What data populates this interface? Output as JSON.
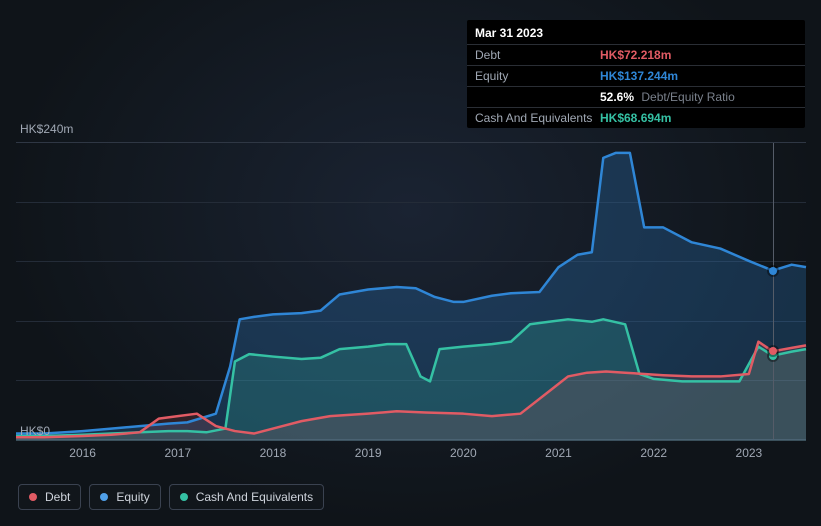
{
  "tooltip": {
    "date": "Mar 31 2023",
    "rows": [
      {
        "label": "Debt",
        "value": "HK$72.218m",
        "color": "#e15b64"
      },
      {
        "label": "Equity",
        "value": "HK$137.244m",
        "color": "#2f86d6"
      },
      {
        "label": "",
        "value": "52.6%",
        "suffix": "Debt/Equity Ratio",
        "color": "#ffffff"
      },
      {
        "label": "Cash And Equivalents",
        "value": "HK$68.694m",
        "color": "#35c1a4"
      }
    ]
  },
  "chart": {
    "type": "area",
    "y_unit_prefix": "HK$",
    "y_unit_suffix": "m",
    "ylim": [
      0,
      240
    ],
    "y_labels": [
      {
        "v": 240,
        "text": "HK$240m"
      },
      {
        "v": 0,
        "text": "HK$0"
      }
    ],
    "gridlines_y": [
      48,
      96,
      144,
      192
    ],
    "x_years": [
      2016,
      2017,
      2018,
      2019,
      2020,
      2021,
      2022,
      2023
    ],
    "x_range": [
      2015.3,
      2023.6
    ],
    "cursor_x": 2023.25,
    "background_color": "#0f1419",
    "grid_color": "#242c38",
    "axis_color": "#2f3744",
    "series": {
      "equity": {
        "label": "Equity",
        "stroke": "#2f86d6",
        "fill": "#2f86d6",
        "fill_opacity": 0.25,
        "stroke_width": 2.5,
        "data": [
          [
            2015.3,
            6
          ],
          [
            2015.6,
            6
          ],
          [
            2016.0,
            8
          ],
          [
            2016.3,
            10
          ],
          [
            2016.6,
            12
          ],
          [
            2016.9,
            14
          ],
          [
            2017.1,
            15
          ],
          [
            2017.4,
            22
          ],
          [
            2017.55,
            60
          ],
          [
            2017.65,
            98
          ],
          [
            2017.8,
            100
          ],
          [
            2018.0,
            102
          ],
          [
            2018.3,
            103
          ],
          [
            2018.5,
            105
          ],
          [
            2018.7,
            118
          ],
          [
            2019.0,
            122
          ],
          [
            2019.3,
            124
          ],
          [
            2019.5,
            123
          ],
          [
            2019.7,
            116
          ],
          [
            2019.9,
            112
          ],
          [
            2020.0,
            112
          ],
          [
            2020.3,
            117
          ],
          [
            2020.5,
            119
          ],
          [
            2020.8,
            120
          ],
          [
            2021.0,
            140
          ],
          [
            2021.2,
            150
          ],
          [
            2021.35,
            152
          ],
          [
            2021.47,
            228
          ],
          [
            2021.6,
            232
          ],
          [
            2021.75,
            232
          ],
          [
            2021.9,
            172
          ],
          [
            2022.1,
            172
          ],
          [
            2022.4,
            160
          ],
          [
            2022.7,
            155
          ],
          [
            2023.0,
            145
          ],
          [
            2023.25,
            137.244
          ],
          [
            2023.45,
            142
          ],
          [
            2023.6,
            140
          ]
        ]
      },
      "cash": {
        "label": "Cash And Equivalents",
        "stroke": "#35c1a4",
        "fill": "#35c1a4",
        "fill_opacity": 0.2,
        "stroke_width": 2.5,
        "data": [
          [
            2015.3,
            4
          ],
          [
            2015.6,
            4
          ],
          [
            2016.0,
            5
          ],
          [
            2016.3,
            6
          ],
          [
            2016.6,
            7
          ],
          [
            2016.9,
            8
          ],
          [
            2017.1,
            8
          ],
          [
            2017.3,
            7
          ],
          [
            2017.5,
            10
          ],
          [
            2017.6,
            64
          ],
          [
            2017.75,
            70
          ],
          [
            2018.0,
            68
          ],
          [
            2018.3,
            66
          ],
          [
            2018.5,
            67
          ],
          [
            2018.7,
            74
          ],
          [
            2019.0,
            76
          ],
          [
            2019.2,
            78
          ],
          [
            2019.4,
            78
          ],
          [
            2019.55,
            52
          ],
          [
            2019.65,
            48
          ],
          [
            2019.75,
            74
          ],
          [
            2020.0,
            76
          ],
          [
            2020.3,
            78
          ],
          [
            2020.5,
            80
          ],
          [
            2020.7,
            94
          ],
          [
            2020.9,
            96
          ],
          [
            2021.1,
            98
          ],
          [
            2021.35,
            96
          ],
          [
            2021.47,
            98
          ],
          [
            2021.7,
            94
          ],
          [
            2021.85,
            54
          ],
          [
            2022.0,
            50
          ],
          [
            2022.3,
            48
          ],
          [
            2022.6,
            48
          ],
          [
            2022.9,
            48
          ],
          [
            2023.1,
            76
          ],
          [
            2023.25,
            68.694
          ],
          [
            2023.45,
            72
          ],
          [
            2023.6,
            74
          ]
        ]
      },
      "debt": {
        "label": "Debt",
        "stroke": "#e15b64",
        "fill": "#e15b64",
        "fill_opacity": 0.15,
        "stroke_width": 2.5,
        "data": [
          [
            2015.3,
            3
          ],
          [
            2015.6,
            3
          ],
          [
            2016.0,
            4
          ],
          [
            2016.3,
            5
          ],
          [
            2016.6,
            7
          ],
          [
            2016.8,
            18
          ],
          [
            2017.0,
            20
          ],
          [
            2017.2,
            22
          ],
          [
            2017.4,
            12
          ],
          [
            2017.6,
            8
          ],
          [
            2017.8,
            6
          ],
          [
            2018.0,
            10
          ],
          [
            2018.3,
            16
          ],
          [
            2018.6,
            20
          ],
          [
            2019.0,
            22
          ],
          [
            2019.3,
            24
          ],
          [
            2019.6,
            23
          ],
          [
            2020.0,
            22
          ],
          [
            2020.3,
            20
          ],
          [
            2020.6,
            22
          ],
          [
            2020.9,
            40
          ],
          [
            2021.1,
            52
          ],
          [
            2021.3,
            55
          ],
          [
            2021.5,
            56
          ],
          [
            2021.7,
            55
          ],
          [
            2021.9,
            54
          ],
          [
            2022.1,
            53
          ],
          [
            2022.4,
            52
          ],
          [
            2022.7,
            52
          ],
          [
            2023.0,
            54
          ],
          [
            2023.1,
            80
          ],
          [
            2023.25,
            72.218
          ],
          [
            2023.45,
            75
          ],
          [
            2023.6,
            77
          ]
        ]
      }
    },
    "legend_order": [
      "debt",
      "equity",
      "cash"
    ],
    "legend_labels": {
      "debt": "Debt",
      "equity": "Equity",
      "cash": "Cash And Equivalents"
    },
    "legend_colors": {
      "debt": "#e15b64",
      "equity": "#4f9fe8",
      "cash": "#35c1a4"
    }
  }
}
